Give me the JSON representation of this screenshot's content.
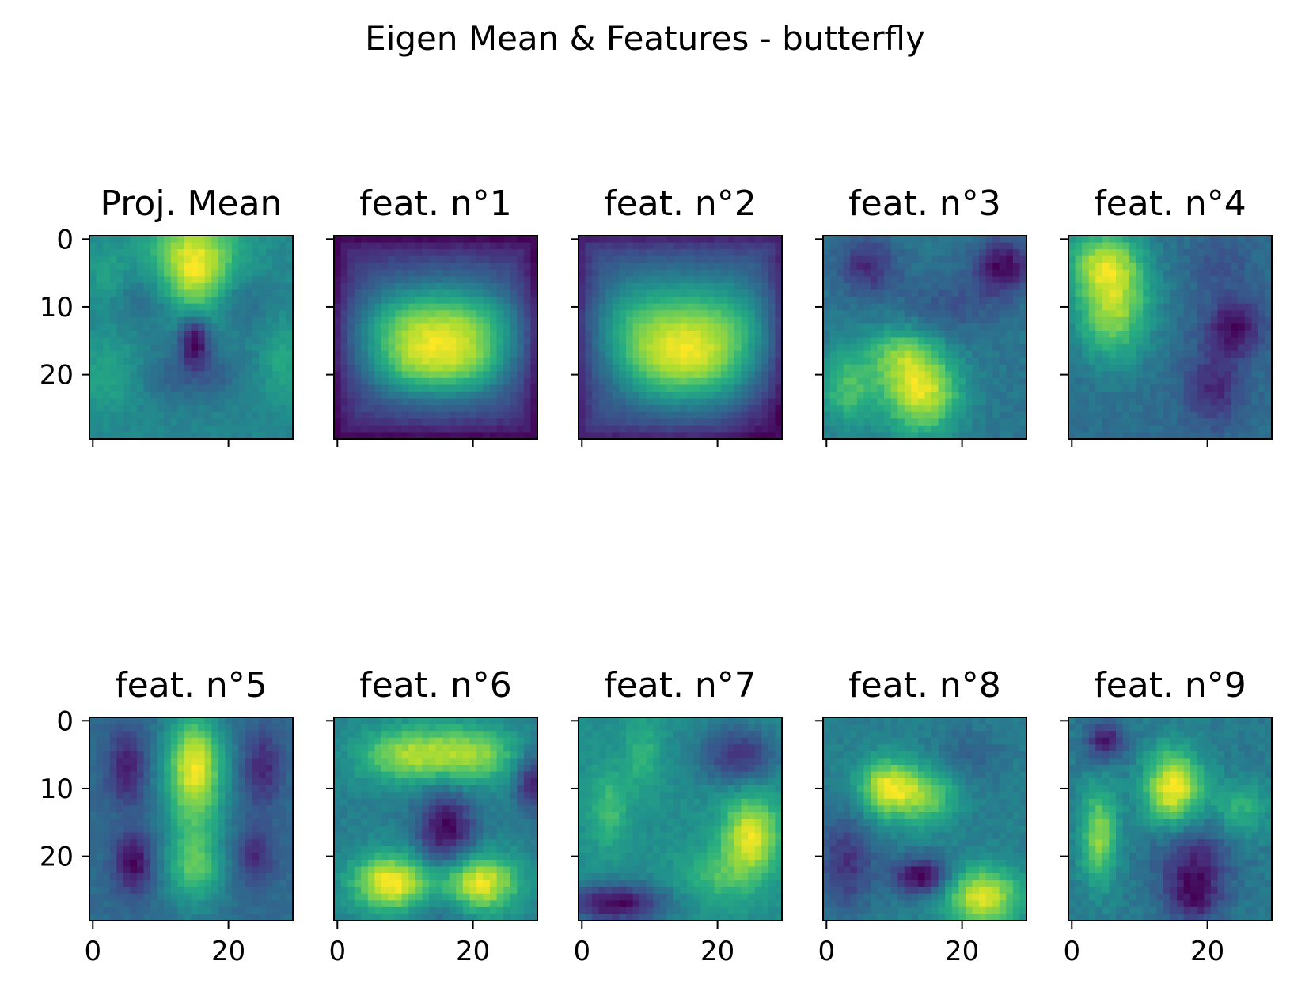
{
  "figure": {
    "title": "Eigen Mean & Features - butterfly"
  },
  "chart_data": {
    "type": "heatmap",
    "colormap": "viridis",
    "image_size": [
      30,
      30
    ],
    "x_ticks": [
      0,
      20
    ],
    "y_ticks": [
      0,
      10,
      20
    ],
    "xlim": [
      -0.5,
      29.5
    ],
    "ylim": [
      29.5,
      -0.5
    ],
    "grid": false,
    "panels": [
      {
        "title": "Proj. Mean",
        "blobs": [
          [
            15,
            2,
            5,
            5,
            1.0
          ],
          [
            15,
            6,
            3,
            4,
            0.6
          ],
          [
            15,
            15,
            1.5,
            2.5,
            -1.2
          ],
          [
            8,
            9,
            3,
            3,
            -0.35
          ],
          [
            22,
            9,
            3,
            3,
            -0.35
          ],
          [
            12,
            20,
            3,
            3,
            -0.35
          ],
          [
            18,
            20,
            3,
            3,
            -0.35
          ],
          [
            2,
            20,
            3,
            4,
            0.35
          ],
          [
            28,
            18,
            2,
            4,
            0.4
          ],
          [
            2,
            5,
            2,
            3,
            0.3
          ]
        ],
        "base": 0.5,
        "noise": 0.08
      },
      {
        "title": "feat. n°1",
        "blobs": [
          [
            15,
            15,
            8,
            6,
            1.0
          ],
          [
            10,
            13,
            5,
            4,
            0.6
          ],
          [
            20,
            13,
            5,
            4,
            0.6
          ],
          [
            11,
            19,
            4,
            3,
            0.5
          ],
          [
            19,
            19,
            4,
            3,
            0.5
          ]
        ],
        "frame": 1,
        "base": 0.1,
        "noise": 0.05
      },
      {
        "title": "feat. n°2",
        "blobs": [
          [
            9,
            13,
            5,
            5,
            1.0
          ],
          [
            21,
            13,
            5,
            5,
            1.0
          ],
          [
            11,
            19,
            4,
            4,
            0.7
          ],
          [
            19,
            19,
            4,
            4,
            0.7
          ],
          [
            15,
            15,
            3,
            6,
            0.35
          ],
          [
            27,
            27,
            3,
            3,
            -0.3
          ]
        ],
        "frame": 1,
        "base": 0.18,
        "noise": 0.05
      },
      {
        "title": "feat. n°3",
        "blobs": [
          [
            14,
            23,
            4,
            4,
            1.0
          ],
          [
            11,
            17,
            4,
            3,
            0.6
          ],
          [
            3,
            22,
            3,
            4,
            0.55
          ],
          [
            6,
            4,
            3,
            3,
            -0.5
          ],
          [
            26,
            4,
            3,
            3,
            -0.7
          ],
          [
            18,
            10,
            5,
            3,
            -0.25
          ]
        ],
        "base": 0.45,
        "noise": 0.07
      },
      {
        "title": "feat. n°4",
        "blobs": [
          [
            6,
            9,
            4,
            6,
            1.0
          ],
          [
            4,
            3,
            4,
            3,
            0.5
          ],
          [
            24,
            13,
            3,
            3,
            -0.6
          ],
          [
            21,
            22,
            3,
            4,
            -0.45
          ],
          [
            22,
            4,
            3,
            3,
            -0.2
          ]
        ],
        "base": 0.45,
        "noise": 0.07
      },
      {
        "title": "feat. n°5",
        "blobs": [
          [
            15,
            6,
            3,
            5,
            1.0
          ],
          [
            15,
            16,
            3,
            8,
            0.55
          ],
          [
            15,
            22,
            3,
            3,
            0.4
          ],
          [
            5,
            7,
            2,
            4,
            -0.55
          ],
          [
            25,
            7,
            2,
            4,
            -0.5
          ],
          [
            6,
            21,
            2,
            3,
            -0.7
          ],
          [
            24,
            20,
            2,
            3,
            -0.45
          ]
        ],
        "base": 0.45,
        "noise": 0.06
      },
      {
        "title": "feat. n°6",
        "blobs": [
          [
            8,
            24,
            4,
            3,
            1.0
          ],
          [
            21,
            24,
            4,
            3,
            0.95
          ],
          [
            10,
            5,
            5,
            3,
            0.65
          ],
          [
            20,
            5,
            5,
            3,
            0.65
          ],
          [
            16,
            16,
            3,
            4,
            -0.7
          ],
          [
            29,
            9,
            2,
            3,
            -0.6
          ],
          [
            15,
            28,
            4,
            3,
            -0.2
          ]
        ],
        "base": 0.38,
        "noise": 0.06
      },
      {
        "title": "feat. n°7",
        "blobs": [
          [
            25,
            17,
            3,
            4,
            1.0
          ],
          [
            4,
            13,
            2,
            4,
            0.45
          ],
          [
            9,
            5,
            2,
            4,
            0.35
          ],
          [
            23,
            5,
            4,
            3,
            -0.7
          ],
          [
            5,
            27,
            5,
            2,
            -1.0
          ],
          [
            20,
            23,
            4,
            3,
            0.4
          ]
        ],
        "base": 0.42,
        "noise": 0.07
      },
      {
        "title": "feat. n°8",
        "blobs": [
          [
            9,
            10,
            3,
            3,
            1.0
          ],
          [
            15,
            11,
            3,
            3,
            0.65
          ],
          [
            23,
            26,
            4,
            3,
            1.0
          ],
          [
            3,
            21,
            3,
            5,
            -0.55
          ],
          [
            14,
            23,
            3,
            2,
            -0.85
          ],
          [
            21,
            5,
            4,
            3,
            -0.2
          ]
        ],
        "base": 0.4,
        "noise": 0.07
      },
      {
        "title": "feat. n°9",
        "blobs": [
          [
            15,
            10,
            3,
            4,
            1.0
          ],
          [
            4,
            17,
            2,
            5,
            0.7
          ],
          [
            5,
            3,
            2,
            2,
            -0.6
          ],
          [
            18,
            20,
            4,
            4,
            -0.45
          ],
          [
            18,
            26,
            3,
            3,
            -0.5
          ],
          [
            25,
            13,
            3,
            3,
            0.4
          ]
        ],
        "base": 0.4,
        "noise": 0.07
      }
    ]
  }
}
